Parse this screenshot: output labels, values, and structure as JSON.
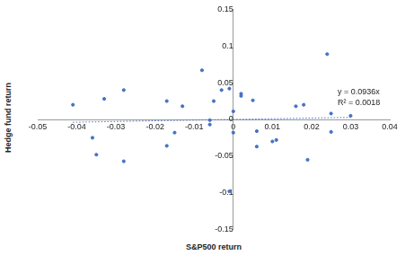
{
  "chart_data": {
    "type": "scatter",
    "x_label": "S&P500 return",
    "y_label": "Hedge fund return",
    "x": [
      -0.041,
      -0.036,
      -0.035,
      -0.033,
      -0.028,
      -0.028,
      -0.017,
      -0.017,
      -0.015,
      -0.013,
      -0.008,
      -0.006,
      -0.006,
      -0.005,
      -0.003,
      -0.001,
      0.0,
      0.0,
      0.002,
      0.002,
      -0.001,
      0.005,
      0.006,
      0.006,
      0.01,
      0.011,
      0.016,
      0.018,
      0.019,
      0.024,
      0.025,
      0.025,
      0.03
    ],
    "values": [
      0.02,
      -0.025,
      -0.048,
      0.028,
      0.04,
      -0.057,
      0.025,
      -0.036,
      -0.018,
      0.018,
      0.067,
      -0.001,
      -0.007,
      0.025,
      0.04,
      0.042,
      -0.018,
      0.011,
      0.035,
      0.032,
      -0.098,
      0.026,
      -0.016,
      -0.037,
      -0.03,
      -0.028,
      0.018,
      0.02,
      -0.055,
      0.089,
      0.008,
      -0.017,
      0.005
    ],
    "color": "#4472c4",
    "marker": "circle",
    "xlim": [
      -0.05,
      0.04
    ],
    "xticks": [
      -0.05,
      -0.04,
      -0.03,
      -0.02,
      -0.01,
      0,
      0.01,
      0.02,
      0.03,
      0.04
    ],
    "ylim": [
      -0.15,
      0.15
    ],
    "yticks": [
      -0.15,
      -0.1,
      -0.05,
      0,
      0.05,
      0.1,
      0.15
    ],
    "grid": false,
    "trendline": {
      "slope": 0.0936,
      "line_style": "dotted",
      "annotations": [
        "y = 0.0936x",
        "R² = 0.0018"
      ]
    }
  }
}
